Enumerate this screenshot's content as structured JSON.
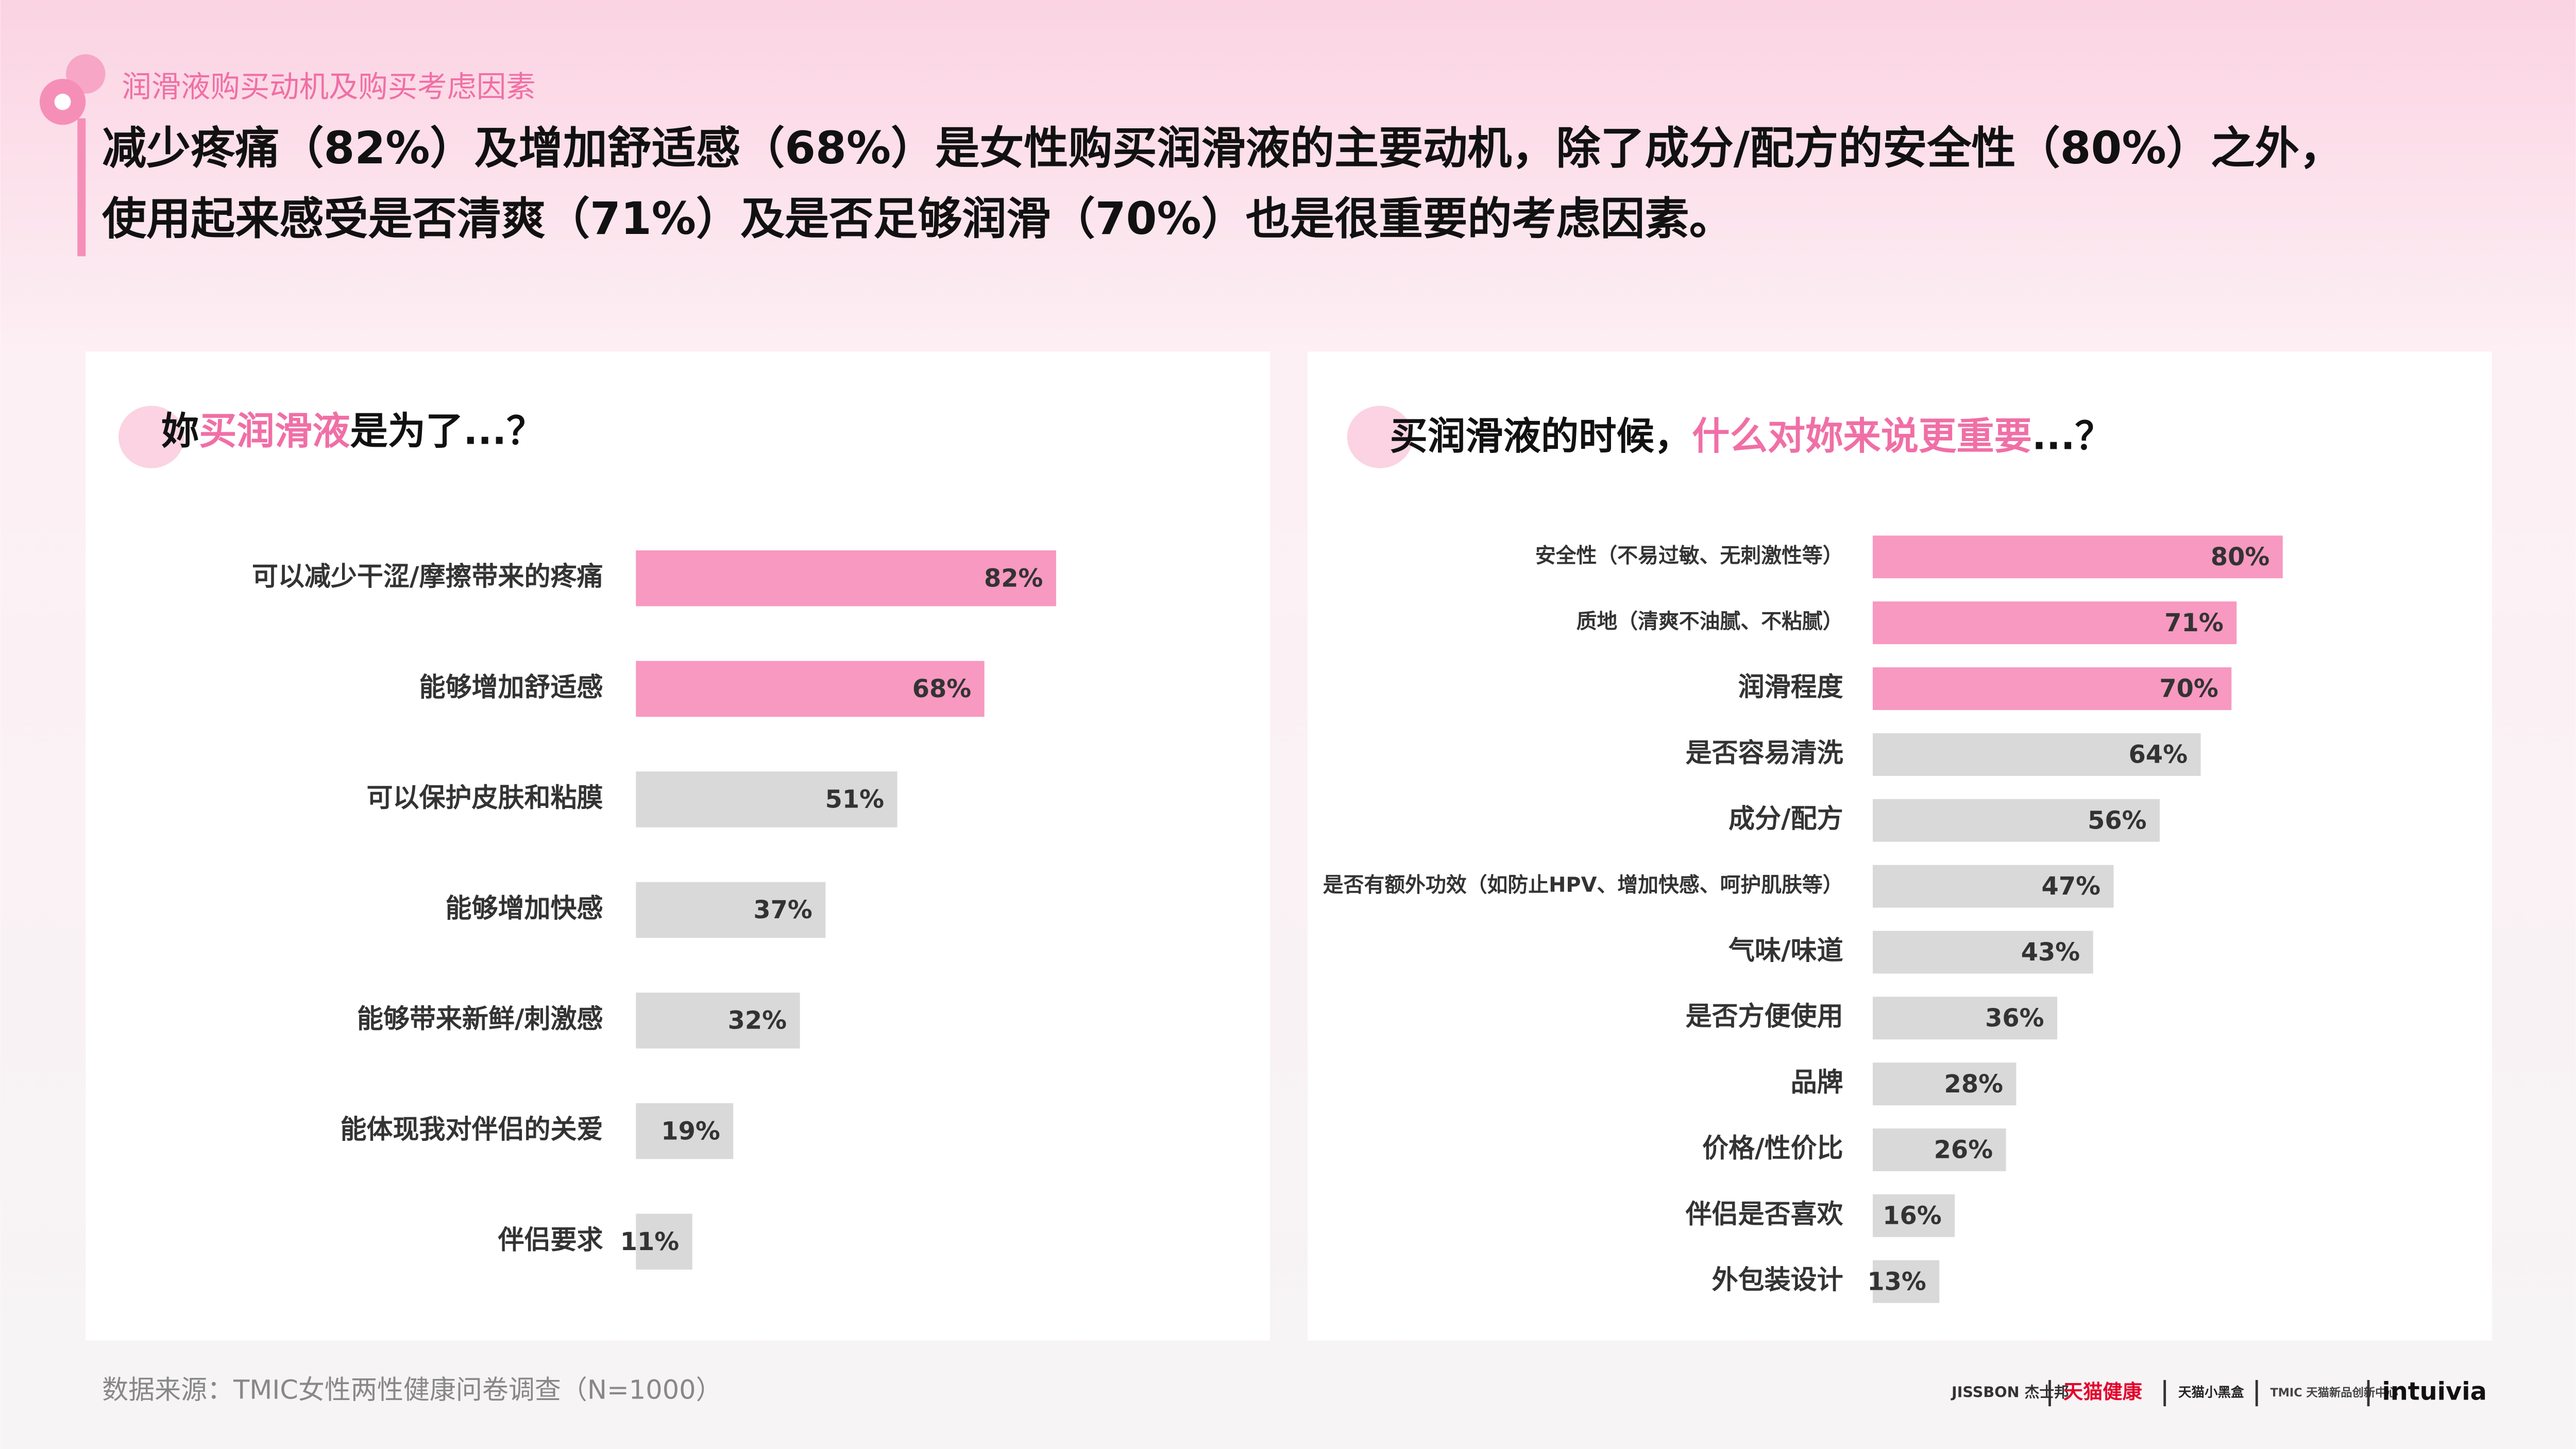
{
  "header": {
    "section": "润滑液购买动机及购买考虑因素",
    "headline": [
      "减少疼痛（82%）及增加舒适感（68%）是女性购买润滑液的主要动机，除了成分/配方的安全性（80%）之外，",
      "使用起来感受是否清爽（71%）及是否足够润滑（70%）也是很重要的考虑因素。"
    ]
  },
  "chart_data": [
    {
      "type": "bar",
      "orientation": "horizontal",
      "title": [
        "妳",
        "买润滑液",
        "是为了...？"
      ],
      "categories": [
        "可以减少干涩/摩擦带来的疼痛",
        "能够增加舒适感",
        "可以保护皮肤和粘膜",
        "能够增加快感",
        "能够带来新鲜/刺激感",
        "能体现我对伴侣的关爱",
        "伴侣要求"
      ],
      "values": [
        82,
        68,
        51,
        37,
        32,
        19,
        11
      ],
      "value_labels": [
        "82%",
        "68%",
        "51%",
        "37%",
        "32%",
        "19%",
        "11%"
      ],
      "colors": [
        "#f799c0",
        "#f799c0",
        "#d9d9d9",
        "#d9d9d9",
        "#d9d9d9",
        "#d9d9d9",
        "#d9d9d9"
      ]
    },
    {
      "type": "bar",
      "orientation": "horizontal",
      "title": [
        "买润滑液的时候，",
        "什么对妳来说更重要",
        "...？"
      ],
      "categories": [
        "安全性（不易过敏、无刺激性等）",
        "质地（清爽不油腻、不粘腻）",
        "润滑程度",
        "是否容易清洗",
        "成分/配方",
        "是否有额外功效（如防止HPV、增加快感、呵护肌肤等）",
        "气味/味道",
        "是否方便使用",
        "品牌",
        "价格/性价比",
        "伴侣是否喜欢",
        "外包装设计"
      ],
      "values": [
        80,
        71,
        70,
        64,
        56,
        47,
        43,
        36,
        28,
        26,
        16,
        13
      ],
      "value_labels": [
        "80%",
        "71%",
        "70%",
        "64%",
        "56%",
        "47%",
        "43%",
        "36%",
        "28%",
        "26%",
        "16%",
        "13%"
      ],
      "colors": [
        "#f799c0",
        "#f799c0",
        "#f799c0",
        "#d9d9d9",
        "#d9d9d9",
        "#d9d9d9",
        "#d9d9d9",
        "#d9d9d9",
        "#d9d9d9",
        "#d9d9d9",
        "#d9d9d9",
        "#d9d9d9"
      ]
    }
  ],
  "footer": {
    "source": "数据来源：TMIC女性两性健康问卷调查（N=1000）",
    "logos": [
      "JISSBON 杰士邦",
      "天猫健康",
      "天猫小黑盒",
      "TMIC 天猫新品创新中心",
      "intuivia"
    ]
  }
}
